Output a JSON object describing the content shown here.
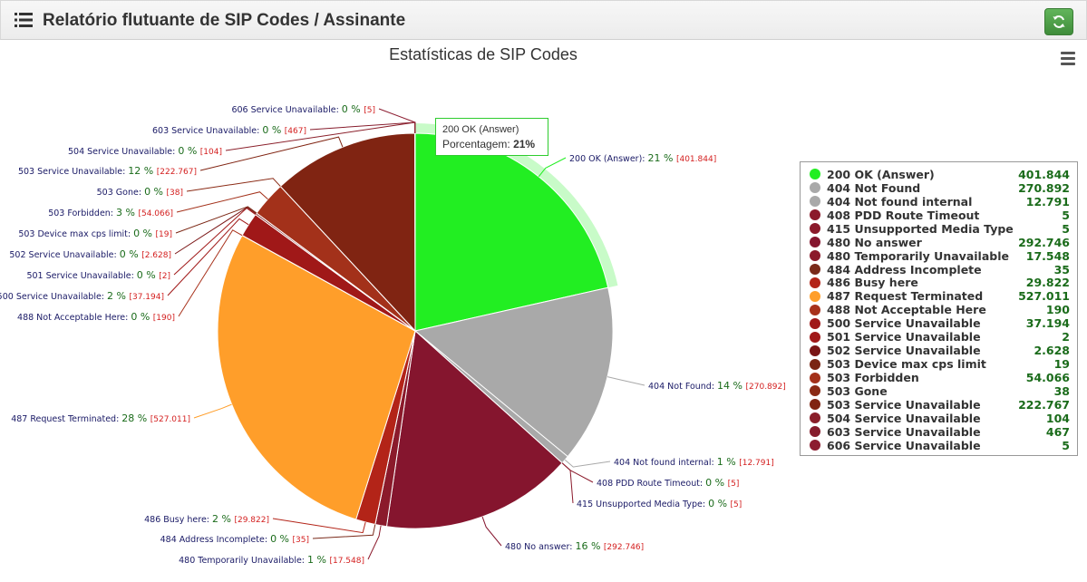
{
  "header": {
    "title": "Relatório flutuante de SIP Codes / Assinante",
    "list_icon": "list-icon",
    "refresh_icon": "refresh-icon"
  },
  "menu_icon": "hamburger-icon",
  "tooltip": {
    "name": "200 OK (Answer)",
    "label": "Porcentagem:",
    "value": "21%"
  },
  "chart_data": {
    "type": "pie",
    "title": "Estatísticas de SIP Codes",
    "legend": "right",
    "slices": [
      {
        "name": "200 OK (Answer)",
        "value": 401844,
        "value_text": "401.844",
        "percent": "21 %",
        "color": "#22ee22"
      },
      {
        "name": "404 Not Found",
        "value": 270892,
        "value_text": "270.892",
        "percent": "14 %",
        "color": "#a9a9a9"
      },
      {
        "name": "404 Not found internal",
        "value": 12791,
        "value_text": "12.791",
        "percent": "1 %",
        "color": "#a9a9a9"
      },
      {
        "name": "408 PDD Route Timeout",
        "value": 5,
        "value_text": "5",
        "percent": "0 %",
        "color": "#8b1a2b"
      },
      {
        "name": "415 Unsupported Media Type",
        "value": 5,
        "value_text": "5",
        "percent": "0 %",
        "color": "#8b1a2b"
      },
      {
        "name": "480 No answer",
        "value": 292746,
        "value_text": "292.746",
        "percent": "16 %",
        "color": "#85152e"
      },
      {
        "name": "480 Temporarily Unavailable",
        "value": 17548,
        "value_text": "17.548",
        "percent": "1 %",
        "color": "#8b1a2b"
      },
      {
        "name": "484 Address Incomplete",
        "value": 35,
        "value_text": "35",
        "percent": "0 %",
        "color": "#7a2a1a"
      },
      {
        "name": "486 Busy here",
        "value": 29822,
        "value_text": "29.822",
        "percent": "2 %",
        "color": "#b32418"
      },
      {
        "name": "487 Request Terminated",
        "value": 527011,
        "value_text": "527.011",
        "percent": "28 %",
        "color": "#ff9e2a"
      },
      {
        "name": "488 Not Acceptable Here",
        "value": 190,
        "value_text": "190",
        "percent": "0 %",
        "color": "#a8321c"
      },
      {
        "name": "500 Service Unavailable",
        "value": 37194,
        "value_text": "37.194",
        "percent": "2 %",
        "color": "#a01818"
      },
      {
        "name": "501 Service Unavailable",
        "value": 2,
        "value_text": "2",
        "percent": "0 %",
        "color": "#a01818"
      },
      {
        "name": "502 Service Unavailable",
        "value": 2628,
        "value_text": "2.628",
        "percent": "0 %",
        "color": "#7a1515"
      },
      {
        "name": "503 Device max cps limit",
        "value": 19,
        "value_text": "19",
        "percent": "0 %",
        "color": "#7a2512"
      },
      {
        "name": "503 Forbidden",
        "value": 54066,
        "value_text": "54.066",
        "percent": "3 %",
        "color": "#a3311a"
      },
      {
        "name": "503 Gone",
        "value": 38,
        "value_text": "38",
        "percent": "0 %",
        "color": "#8a2a14"
      },
      {
        "name": "503 Service Unavailable",
        "value": 222767,
        "value_text": "222.767",
        "percent": "12 %",
        "color": "#802412"
      },
      {
        "name": "504 Service Unavailable",
        "value": 104,
        "value_text": "104",
        "percent": "0 %",
        "color": "#8a1f2a"
      },
      {
        "name": "603 Service Unavailable",
        "value": 467,
        "value_text": "467",
        "percent": "0 %",
        "color": "#861c2c"
      },
      {
        "name": "606 Service Unavailable",
        "value": 5,
        "value_text": "5",
        "percent": "0 %",
        "color": "#8c1c30"
      }
    ],
    "slice_labels": {
      "200 OK (Answer)": "200 OK (Answer)",
      "404 Not Found": "404 Not Found",
      "404 Not found internal": "404 Not found internal",
      "408 PDD Route Timeout": "408 PDD Route Timeout",
      "415 Unsupported Media Type": "415 Unsupported Media Type",
      "480 No answer": "480 No answer",
      "480 Temporarily Unavailable": "480 Temporarily Unavailable",
      "484 Address Incomplete": "484 Address Incomplete",
      "486 Busy here": "486 Busy here",
      "487 Request Terminated": "487 Request Terminated",
      "488 Not Acceptable Here": "488 Not Acceptable Here",
      "500 Service Unavailable": "500 Service Unavailable",
      "501 Service Unavailable": "501 Service Unavailable",
      "502 Service Unavailable": "502 Service Unavailable",
      "503 Device max cps limit": "503 Device max cps limit",
      "503 Forbidden": "503 Forbidden",
      "503 Gone": "503 Gone",
      "503 Service Unavailable": "503 Service Unavailable",
      "504 Service Unavailable": "504 Service Unavailable",
      "603 Service Unavailable": "603 Service Unavailable",
      "606 Service Unavailable": "606 Service Unavailable"
    }
  }
}
